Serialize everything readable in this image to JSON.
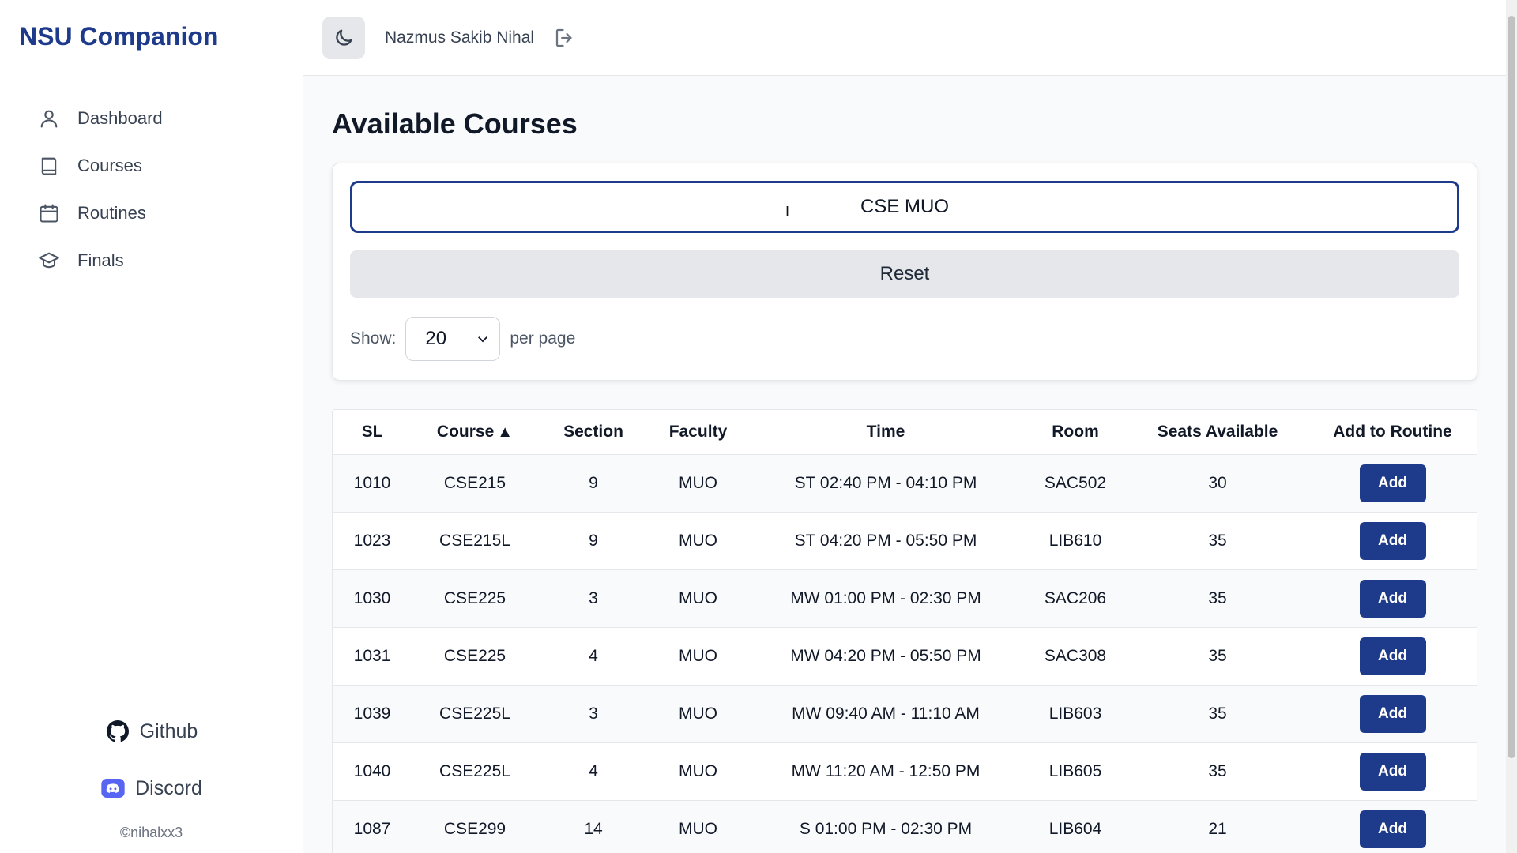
{
  "sidebar": {
    "brand": "NSU Companion",
    "items": [
      {
        "label": "Dashboard",
        "icon": "user-icon"
      },
      {
        "label": "Courses",
        "icon": "book-icon"
      },
      {
        "label": "Routines",
        "icon": "calendar-icon"
      },
      {
        "label": "Finals",
        "icon": "graduation-cap-icon"
      }
    ],
    "footer": {
      "github": "Github",
      "discord": "Discord",
      "copyright": "©nihalxx3"
    }
  },
  "header": {
    "user_name": "Nazmus Sakib Nihal"
  },
  "main": {
    "title": "Available Courses",
    "search_value": "CSE MUO",
    "reset_label": "Reset",
    "show_label": "Show:",
    "per_page_value": "20",
    "per_page_label": "per page"
  },
  "table": {
    "columns": [
      "SL",
      "Course",
      "Section",
      "Faculty",
      "Time",
      "Room",
      "Seats Available",
      "Add to Routine"
    ],
    "sort_indicator": "▲",
    "add_label": "Add",
    "rows": [
      [
        "1010",
        "CSE215",
        "9",
        "MUO",
        "ST 02:40 PM - 04:10 PM",
        "SAC502",
        "30"
      ],
      [
        "1023",
        "CSE215L",
        "9",
        "MUO",
        "ST 04:20 PM - 05:50 PM",
        "LIB610",
        "35"
      ],
      [
        "1030",
        "CSE225",
        "3",
        "MUO",
        "MW 01:00 PM - 02:30 PM",
        "SAC206",
        "35"
      ],
      [
        "1031",
        "CSE225",
        "4",
        "MUO",
        "MW 04:20 PM - 05:50 PM",
        "SAC308",
        "35"
      ],
      [
        "1039",
        "CSE225L",
        "3",
        "MUO",
        "MW 09:40 AM - 11:10 AM",
        "LIB603",
        "35"
      ],
      [
        "1040",
        "CSE225L",
        "4",
        "MUO",
        "MW 11:20 AM - 12:50 PM",
        "LIB605",
        "35"
      ],
      [
        "1087",
        "CSE299",
        "14",
        "MUO",
        "S 01:00 PM - 02:30 PM",
        "LIB604",
        "21"
      ]
    ]
  },
  "colors": {
    "brand": "#1e3a8a",
    "button": "#1e3a8a"
  }
}
